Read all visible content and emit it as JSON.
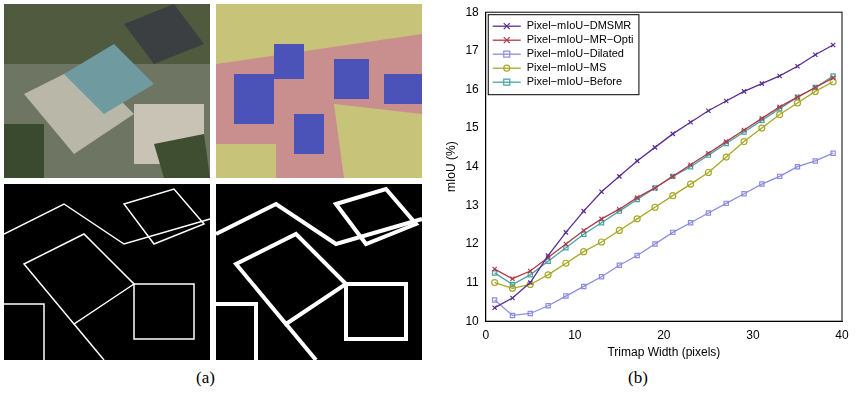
{
  "panel_labels": [
    "(a)",
    "(b)"
  ],
  "chart_data": {
    "type": "line",
    "xlabel": "Trimap Width (pixels)",
    "ylabel": "mIoU (%)",
    "x": [
      1,
      3,
      5,
      7,
      9,
      11,
      13,
      15,
      17,
      19,
      21,
      23,
      25,
      27,
      29,
      31,
      33,
      35,
      37,
      39
    ],
    "series": [
      {
        "name": "Pixel−mIoU−DMSMR",
        "color": "#5a2d91",
        "marker": "x",
        "values": [
          10.35,
          10.6,
          11.0,
          11.7,
          12.3,
          12.85,
          13.35,
          13.75,
          14.15,
          14.5,
          14.85,
          15.15,
          15.45,
          15.7,
          15.95,
          16.15,
          16.35,
          16.6,
          16.9,
          17.15
        ]
      },
      {
        "name": "Pixel−mIoU−MR−Opti",
        "color": "#b03a48",
        "marker": "x",
        "values": [
          11.35,
          11.1,
          11.3,
          11.65,
          12.0,
          12.35,
          12.65,
          12.9,
          13.2,
          13.45,
          13.75,
          14.05,
          14.35,
          14.65,
          14.95,
          15.25,
          15.55,
          15.8,
          16.05,
          16.3
        ]
      },
      {
        "name": "Pixel−mIoU−Dilated",
        "color": "#8c8ce0",
        "marker": "square",
        "values": [
          10.55,
          10.15,
          10.2,
          10.4,
          10.65,
          10.9,
          11.15,
          11.45,
          11.7,
          12.0,
          12.3,
          12.55,
          12.8,
          13.05,
          13.3,
          13.55,
          13.75,
          14.0,
          14.15,
          14.35
        ]
      },
      {
        "name": "Pixel−mIoU−MS",
        "color": "#a8a828",
        "marker": "circle",
        "values": [
          11.0,
          10.85,
          10.95,
          11.2,
          11.5,
          11.8,
          12.05,
          12.35,
          12.65,
          12.95,
          13.25,
          13.55,
          13.85,
          14.25,
          14.65,
          15.0,
          15.35,
          15.65,
          15.95,
          16.2
        ]
      },
      {
        "name": "Pixel−mIoU−Before",
        "color": "#4aa3a3",
        "marker": "square",
        "values": [
          11.25,
          10.95,
          11.2,
          11.55,
          11.9,
          12.25,
          12.55,
          12.85,
          13.15,
          13.45,
          13.75,
          14.0,
          14.3,
          14.6,
          14.9,
          15.2,
          15.5,
          15.8,
          16.05,
          16.35
        ]
      }
    ],
    "xlim": [
      0,
      40
    ],
    "xticks": [
      0,
      10,
      20,
      30,
      40
    ],
    "ylim": [
      10,
      18
    ],
    "yticks": [
      10,
      11,
      12,
      13,
      14,
      15,
      16,
      17,
      18
    ],
    "grid": false,
    "legend": "upper left"
  }
}
